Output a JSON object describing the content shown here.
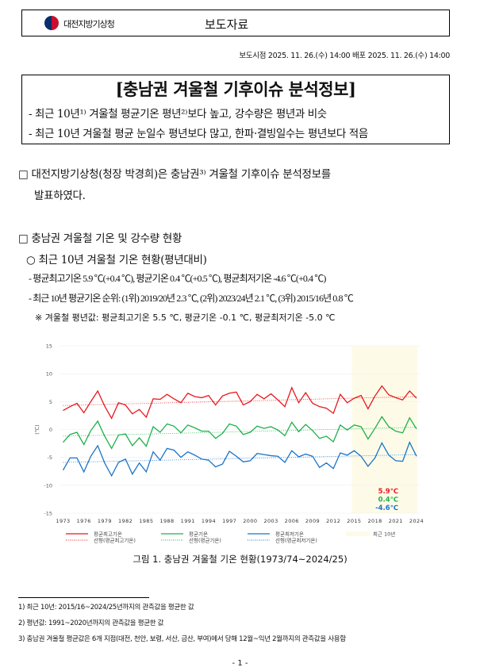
{
  "header": {
    "org": "대전지방기상청",
    "doc_type": "보도자료"
  },
  "release": "보도시점  2025. 11. 26.(수) 14:00   배포   2025. 11. 26.(수) 14:00",
  "title": "[충남권 겨울철 기후이슈 분석정보]",
  "subtitles": [
    "- 최근 10년¹⁾ 겨울철 평균기온 평년²⁾보다 높고, 강수량은 평년과 비슷",
    "- 최근 10년 겨울철 평균 눈일수 평년보다 많고, 한파·결빙일수는 평년보다 적음"
  ],
  "body": {
    "para1_line1": "□ 대전지방기상청(청장 박경희)은 충남권³⁾ 겨울철 기후이슈 분석정보를",
    "para1_line2": "발표하였다.",
    "section": "□ 충남권 겨울철 기온 및 강수량 현황",
    "sub": "○ 최근 10년 겨울철 기온 현황(평년대비)",
    "bullet1": "- 평균최고기온 5.9 ℃(+0.4 ℃), 평균기온 0.4 ℃(+0.5 ℃), 평균최저기온 -4.6 ℃(+0.4 ℃)",
    "bullet2": "- 최근 10년 평균기온 순위: (1위) 2019/20년 2.3 ℃, (2위) 2023/24년 2.1 ℃, (3위) 2015/16년 0.8 ℃",
    "note": "※ 겨울철 평년값: 평균최고기온 5.5 ℃, 평균기온 -0.1 ℃, 평균최저기온 -5.0 ℃"
  },
  "chart_data": {
    "type": "line",
    "ylabel": "(℃)",
    "ylim": [
      -15,
      15
    ],
    "yticks": [
      15,
      10,
      5,
      0,
      -5,
      -10,
      -15
    ],
    "xticks": [
      1973,
      1976,
      1979,
      1982,
      1985,
      1988,
      1991,
      1994,
      1997,
      2000,
      2003,
      2006,
      2009,
      2012,
      2015,
      2018,
      2021,
      2024
    ],
    "x_start": 1973,
    "x_end": 2024,
    "grid": "horizontal",
    "legend": "bottom",
    "highlight": {
      "name": "최근 10년",
      "from": 2015,
      "to": 2024,
      "color": "#fdfbe8"
    },
    "series": [
      {
        "name": "평균최고기온",
        "color": "#e8191f",
        "trend_name": "선형(평균최고기온)",
        "trend": [
          4.3,
          5.9
        ],
        "label": "5.9℃",
        "values": [
          3.4,
          4.1,
          4.7,
          3.0,
          5.0,
          6.9,
          4.2,
          2.0,
          4.8,
          4.4,
          2.8,
          3.6,
          2.2,
          5.5,
          5.4,
          6.3,
          5.5,
          4.8,
          6.5,
          5.9,
          5.7,
          6.1,
          4.4,
          6.0,
          6.5,
          6.7,
          4.4,
          5.0,
          6.3,
          5.5,
          6.4,
          5.3,
          4.1,
          7.5,
          4.8,
          6.6,
          4.7,
          4.1,
          3.8,
          2.9,
          6.3,
          4.8,
          5.6,
          6.1,
          3.7,
          6.0,
          7.8,
          6.2,
          5.7,
          5.3,
          6.9,
          5.6
        ]
      },
      {
        "name": "평균기온",
        "color": "#1fb04b",
        "trend_name": "선형(평균기온)",
        "trend": [
          -1.2,
          0.4
        ],
        "label": "0.4℃",
        "values": [
          -2.3,
          -0.9,
          -0.5,
          -2.7,
          -0.2,
          1.5,
          -1.2,
          -3.4,
          -1.0,
          -0.8,
          -2.9,
          -1.5,
          -3.0,
          0.5,
          -0.5,
          1.0,
          0.6,
          -0.6,
          0.8,
          0.3,
          -0.3,
          -0.3,
          -1.6,
          -0.7,
          1.0,
          0.6,
          -0.9,
          -0.5,
          0.6,
          0.2,
          0.5,
          -0.1,
          -1.1,
          1.3,
          -0.4,
          0.9,
          -0.2,
          -1.6,
          -1.2,
          -2.2,
          0.8,
          -0.1,
          0.8,
          0.5,
          -1.7,
          0.2,
          2.3,
          0.5,
          -0.3,
          -0.6,
          2.1,
          0.1
        ]
      },
      {
        "name": "평균최저기온",
        "color": "#1a73c8",
        "trend_name": "선형(평균최저기온)",
        "trend": [
          -5.9,
          -4.5
        ],
        "label": "-4.6℃",
        "values": [
          -7.3,
          -5.1,
          -5.1,
          -7.6,
          -4.8,
          -2.9,
          -6.0,
          -8.3,
          -5.9,
          -5.3,
          -8.0,
          -6.0,
          -7.6,
          -4.0,
          -5.5,
          -3.4,
          -3.7,
          -5.0,
          -4.0,
          -4.6,
          -5.3,
          -5.5,
          -6.7,
          -6.2,
          -3.9,
          -4.8,
          -5.8,
          -5.6,
          -4.3,
          -4.5,
          -4.7,
          -4.8,
          -5.9,
          -3.8,
          -4.9,
          -4.4,
          -4.8,
          -6.8,
          -6.0,
          -7.0,
          -4.2,
          -4.6,
          -3.8,
          -4.8,
          -6.6,
          -5.1,
          -2.4,
          -4.6,
          -5.6,
          -5.7,
          -2.3,
          -4.8
        ]
      }
    ]
  },
  "caption": "그림 1. 충남권 겨울철 기온 현황(1973/74~2024/25)",
  "footnotes": [
    "1) 최근 10년: 2015/16~2024/25년까지의 관측값을 평균한 값",
    "2) 평년값: 1991~2020년까지의 관측값을 평균한 값",
    "3) 충남권 겨울철 평균값은 6개 지점(대전, 천안, 보령, 서산, 금산, 부여)에서 당해 12월~익년 2월까지의 관측값을 사용함"
  ],
  "page": "- 1 -"
}
